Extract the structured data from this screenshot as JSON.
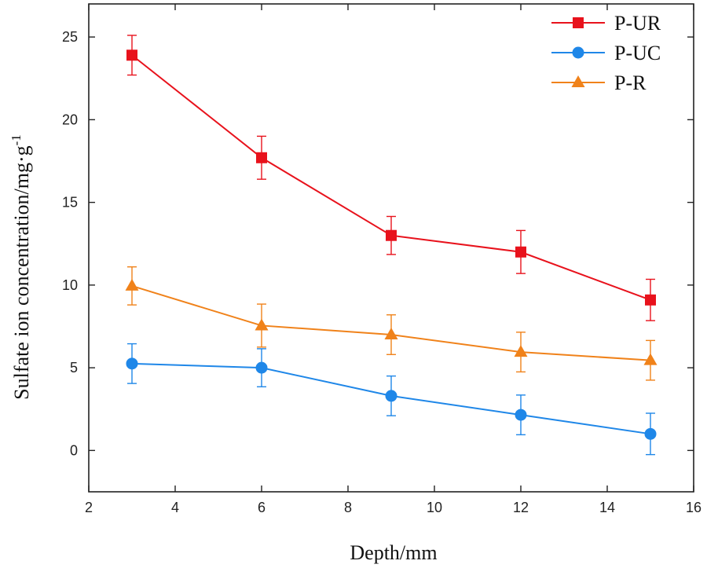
{
  "chart_data": {
    "type": "line",
    "xlabel": "Depth/mm",
    "ylabel": "Sulfate ion  concentration/mg·g",
    "ylabel_superscript": "-1",
    "xlim": [
      2,
      16
    ],
    "ylim": [
      -2.5,
      27
    ],
    "xticks": [
      2,
      4,
      6,
      8,
      10,
      12,
      14,
      16
    ],
    "yticks": [
      0,
      5,
      10,
      15,
      20,
      25
    ],
    "grid": false,
    "legend_position": "top-right",
    "x": [
      3,
      6,
      9,
      12,
      15
    ],
    "series": [
      {
        "name": "P-UR",
        "marker": "square",
        "color": "#e8121c",
        "values": [
          23.9,
          17.7,
          13.0,
          12.0,
          9.1
        ],
        "errors": [
          1.2,
          1.3,
          1.15,
          1.3,
          1.25
        ]
      },
      {
        "name": "P-UC",
        "marker": "circle",
        "color": "#1f87e8",
        "values": [
          5.25,
          5.0,
          3.3,
          2.15,
          1.0
        ],
        "errors": [
          1.2,
          1.15,
          1.2,
          1.2,
          1.25
        ]
      },
      {
        "name": "P-R",
        "marker": "triangle",
        "color": "#f0821a",
        "values": [
          9.95,
          7.55,
          7.0,
          5.95,
          5.45
        ],
        "errors": [
          1.15,
          1.3,
          1.2,
          1.2,
          1.2
        ]
      }
    ]
  }
}
